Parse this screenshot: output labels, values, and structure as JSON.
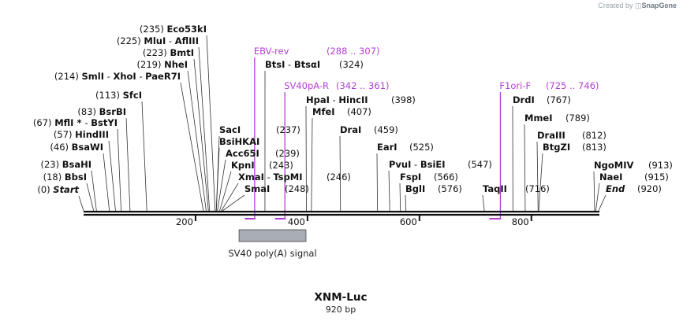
{
  "credit": {
    "prefix": "Created by",
    "brand": "SnapGene"
  },
  "sequence": {
    "name": "XNM-Luc",
    "length_label": "920 bp",
    "length": 920
  },
  "ruler_ticks": [
    {
      "value": 200,
      "label": "200"
    },
    {
      "value": 400,
      "label": "400"
    },
    {
      "value": 600,
      "label": "600"
    },
    {
      "value": 800,
      "label": "800"
    }
  ],
  "sites": [
    {
      "id": "start",
      "pos": 0,
      "pos_label": "(0)",
      "parts": [
        {
          "t": "Start",
          "s": "it"
        }
      ],
      "side": "left"
    },
    {
      "id": "bbsi",
      "pos": 18,
      "pos_label": "(18)",
      "parts": [
        {
          "t": "BbsI",
          "s": "nm"
        }
      ],
      "side": "left"
    },
    {
      "id": "bsahi",
      "pos": 23,
      "pos_label": "(23)",
      "parts": [
        {
          "t": "BsaHI",
          "s": "nm"
        }
      ],
      "side": "left"
    },
    {
      "id": "bsawi",
      "pos": 46,
      "pos_label": "(46)",
      "parts": [
        {
          "t": "BsaWI",
          "s": "nm"
        }
      ],
      "side": "left"
    },
    {
      "id": "hindiii",
      "pos": 57,
      "pos_label": "(57)",
      "parts": [
        {
          "t": "HindIII",
          "s": "nm"
        }
      ],
      "side": "left"
    },
    {
      "id": "mfli",
      "pos": 67,
      "pos_label": "(67)",
      "parts": [
        {
          "t": "MflI",
          "s": "nm"
        },
        {
          "t": " * ",
          "s": "nm"
        },
        {
          "t": " - ",
          "s": ""
        },
        {
          "t": "BstYI",
          "s": "nm"
        }
      ],
      "side": "left"
    },
    {
      "id": "bsrbi",
      "pos": 83,
      "pos_label": "(83)",
      "parts": [
        {
          "t": "BsrBI",
          "s": "nm"
        }
      ],
      "side": "left"
    },
    {
      "id": "sfci",
      "pos": 113,
      "pos_label": "(113)",
      "parts": [
        {
          "t": "SfcI",
          "s": "nm"
        }
      ],
      "side": "left"
    },
    {
      "id": "smli",
      "pos": 214,
      "pos_label": "(214)",
      "parts": [
        {
          "t": "SmlI",
          "s": "nm"
        },
        {
          "t": "  - ",
          "s": ""
        },
        {
          "t": "XhoI",
          "s": "nm"
        },
        {
          "t": "  - ",
          "s": ""
        },
        {
          "t": "PaeR7I",
          "s": "nm"
        }
      ],
      "side": "left"
    },
    {
      "id": "nhei",
      "pos": 219,
      "pos_label": "(219)",
      "parts": [
        {
          "t": "NheI",
          "s": "nm"
        }
      ],
      "side": "left"
    },
    {
      "id": "bmti",
      "pos": 223,
      "pos_label": "(223)",
      "parts": [
        {
          "t": "BmtI",
          "s": "nm"
        }
      ],
      "side": "left"
    },
    {
      "id": "mlui",
      "pos": 225,
      "pos_label": "(225)",
      "parts": [
        {
          "t": "MluI",
          "s": "nm"
        },
        {
          "t": " - ",
          "s": ""
        },
        {
          "t": "AflIII",
          "s": "nm"
        }
      ],
      "side": "left"
    },
    {
      "id": "eco53ki",
      "pos": 235,
      "pos_label": "(235)",
      "parts": [
        {
          "t": "Eco53kI",
          "s": "nm"
        }
      ],
      "side": "left"
    },
    {
      "id": "saci",
      "pos": 237,
      "pos_label": "(237)",
      "parts": [
        {
          "t": "SacI",
          "s": "nm"
        }
      ],
      "side": "right"
    },
    {
      "id": "bsihkai",
      "pos": 237,
      "pos_label": "",
      "parts": [
        {
          "t": "BsiHKAI",
          "s": "nm"
        }
      ],
      "side": "right"
    },
    {
      "id": "acc65i",
      "pos": 239,
      "pos_label": "(239)",
      "parts": [
        {
          "t": "Acc65I",
          "s": "nm"
        }
      ],
      "side": "right"
    },
    {
      "id": "kpni",
      "pos": 243,
      "pos_label": "(243)",
      "parts": [
        {
          "t": "KpnI",
          "s": "nm"
        }
      ],
      "side": "right"
    },
    {
      "id": "xmai",
      "pos": 246,
      "pos_label": "(246)",
      "parts": [
        {
          "t": "XmaI",
          "s": "nm"
        },
        {
          "t": " - ",
          "s": ""
        },
        {
          "t": "TspMI",
          "s": "nm"
        }
      ],
      "side": "right"
    },
    {
      "id": "smai",
      "pos": 248,
      "pos_label": "(248)",
      "parts": [
        {
          "t": "SmaI",
          "s": "nm"
        }
      ],
      "side": "right"
    },
    {
      "id": "bstsi",
      "pos": 324,
      "pos_label": "(324)",
      "parts": [
        {
          "t": "BtsI",
          "s": "nm"
        },
        {
          "t": " - ",
          "s": ""
        },
        {
          "t": "BtsαI",
          "s": "nm"
        }
      ],
      "side": "right"
    },
    {
      "id": "hpai",
      "pos": 398,
      "pos_label": "(398)",
      "parts": [
        {
          "t": "HpaI",
          "s": "nm"
        },
        {
          "t": " - ",
          "s": ""
        },
        {
          "t": "HincII",
          "s": "nm"
        }
      ],
      "side": "right"
    },
    {
      "id": "mfei",
      "pos": 407,
      "pos_label": "(407)",
      "parts": [
        {
          "t": "MfeI",
          "s": "nm"
        }
      ],
      "side": "right"
    },
    {
      "id": "drai",
      "pos": 459,
      "pos_label": "(459)",
      "parts": [
        {
          "t": "DraI",
          "s": "nm"
        }
      ],
      "side": "right"
    },
    {
      "id": "eari",
      "pos": 525,
      "pos_label": "(525)",
      "parts": [
        {
          "t": "EarI",
          "s": "nm"
        }
      ],
      "side": "right"
    },
    {
      "id": "pvui",
      "pos": 547,
      "pos_label": "(547)",
      "parts": [
        {
          "t": "PvuI",
          "s": "nm"
        },
        {
          "t": " - ",
          "s": ""
        },
        {
          "t": "BsiEI",
          "s": "nm"
        }
      ],
      "side": "right"
    },
    {
      "id": "fspi",
      "pos": 566,
      "pos_label": "(566)",
      "parts": [
        {
          "t": "FspI",
          "s": "nm"
        }
      ],
      "side": "right"
    },
    {
      "id": "bgli",
      "pos": 576,
      "pos_label": "(576)",
      "parts": [
        {
          "t": "BglI",
          "s": "nm"
        }
      ],
      "side": "right"
    },
    {
      "id": "taqii",
      "pos": 716,
      "pos_label": "(716)",
      "parts": [
        {
          "t": "TaqII",
          "s": "nm"
        }
      ],
      "side": "right"
    },
    {
      "id": "drdi",
      "pos": 767,
      "pos_label": "(767)",
      "parts": [
        {
          "t": "DrdI",
          "s": "nm"
        }
      ],
      "side": "right"
    },
    {
      "id": "mmei",
      "pos": 789,
      "pos_label": "(789)",
      "parts": [
        {
          "t": "MmeI",
          "s": "nm"
        }
      ],
      "side": "right"
    },
    {
      "id": "draiii",
      "pos": 812,
      "pos_label": "(812)",
      "parts": [
        {
          "t": "DraIII",
          "s": "nm"
        }
      ],
      "side": "right"
    },
    {
      "id": "btgzi",
      "pos": 813,
      "pos_label": "(813)",
      "parts": [
        {
          "t": "BtgZI",
          "s": "nm"
        }
      ],
      "side": "right"
    },
    {
      "id": "ngomiv",
      "pos": 913,
      "pos_label": "(913)",
      "parts": [
        {
          "t": "NgoMIV",
          "s": "nm"
        }
      ],
      "side": "right"
    },
    {
      "id": "naei",
      "pos": 915,
      "pos_label": "(915)",
      "parts": [
        {
          "t": "NaeI",
          "s": "nm"
        }
      ],
      "side": "right"
    },
    {
      "id": "end",
      "pos": 920,
      "pos_label": "(920)",
      "parts": [
        {
          "t": "End",
          "s": "it"
        }
      ],
      "side": "right"
    }
  ],
  "primers": [
    {
      "id": "ebv-rev",
      "name": "EBV-rev",
      "range_label": "(288 .. 307)",
      "start": 288,
      "end": 307,
      "direction": "reverse"
    },
    {
      "id": "sv40pa-r",
      "name": "SV40pA-R",
      "range_label": "(342 .. 361)",
      "start": 342,
      "end": 361,
      "direction": "reverse"
    },
    {
      "id": "f1ori-f",
      "name": "F1ori-F",
      "range_label": "(725 .. 746)",
      "start": 725,
      "end": 746,
      "direction": "reverse"
    }
  ],
  "features": [
    {
      "id": "sv40-polya",
      "name": "SV40 poly(A) signal",
      "start": 277,
      "end": 398,
      "color": "#a9adb4"
    }
  ],
  "colors": {
    "primer": "#b13fd6",
    "backbone": "#111111",
    "feature": "#a9adb4"
  }
}
